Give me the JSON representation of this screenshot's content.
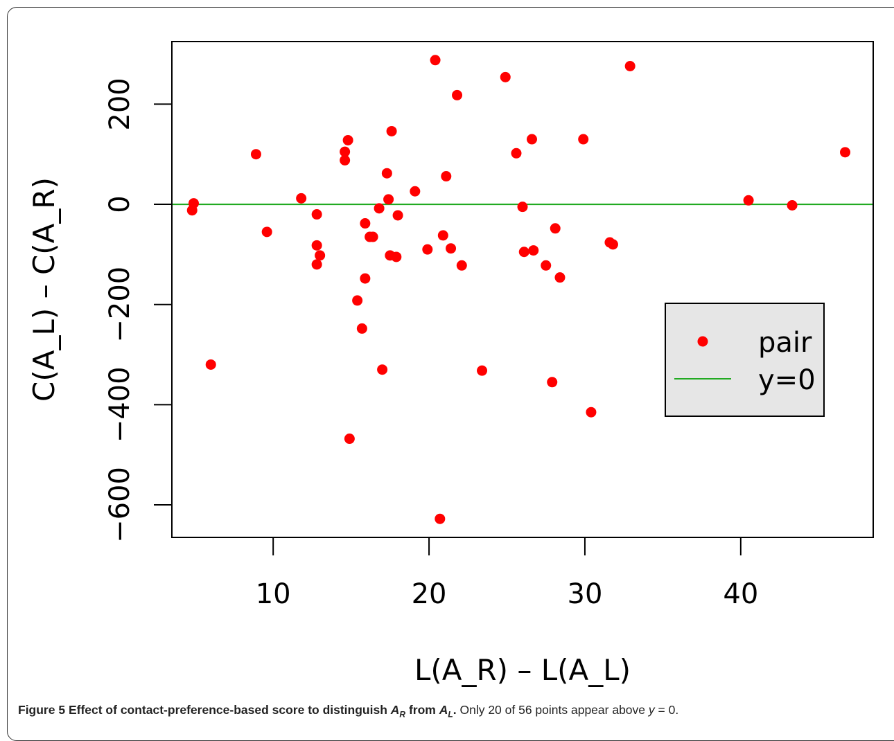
{
  "caption": {
    "label": "Figure 5",
    "title_prefix": "Effect of contact-preference-based score to distinguish",
    "a_r": "A",
    "a_r_sub": "R",
    "from_word": "from",
    "a_l": "A",
    "a_l_sub": "L",
    "title_end": ".",
    "body_text": "Only 20 of 56 points appear above",
    "y_var": "y",
    "body_end": "= 0."
  },
  "chart_data": {
    "type": "scatter",
    "xlabel": "L(A_R) – L(A_L)",
    "ylabel": "C(A_L) – C(A_R)",
    "xlim": [
      3.5,
      48.5
    ],
    "ylim": [
      -665,
      325
    ],
    "xticks": [
      10,
      20,
      30,
      40
    ],
    "yticks": [
      -600,
      -400,
      -200,
      0,
      200
    ],
    "grid": false,
    "legend_position": "right",
    "legend": [
      {
        "label": "pair",
        "kind": "point",
        "color": "#ff0000"
      },
      {
        "label": "y=0",
        "kind": "line",
        "color": "#22aa22"
      }
    ],
    "reference_line": {
      "name": "y=0",
      "y": 0,
      "color": "#22aa22"
    },
    "series": [
      {
        "name": "pair",
        "color": "#ff0000",
        "points": [
          [
            4.8,
            -12
          ],
          [
            4.9,
            2
          ],
          [
            6.0,
            -320
          ],
          [
            8.9,
            100
          ],
          [
            9.6,
            -55
          ],
          [
            11.8,
            12
          ],
          [
            12.8,
            -20
          ],
          [
            12.8,
            -82
          ],
          [
            12.8,
            -120
          ],
          [
            13.0,
            -102
          ],
          [
            14.6,
            105
          ],
          [
            14.6,
            88
          ],
          [
            14.8,
            128
          ],
          [
            14.9,
            -468
          ],
          [
            15.4,
            -192
          ],
          [
            15.7,
            -248
          ],
          [
            15.9,
            -148
          ],
          [
            15.9,
            -38
          ],
          [
            16.2,
            -65
          ],
          [
            16.4,
            -65
          ],
          [
            16.8,
            -8
          ],
          [
            17.0,
            -330
          ],
          [
            17.3,
            62
          ],
          [
            17.4,
            10
          ],
          [
            17.5,
            -102
          ],
          [
            17.6,
            146
          ],
          [
            17.9,
            -105
          ],
          [
            18.0,
            -22
          ],
          [
            19.1,
            26
          ],
          [
            19.9,
            -90
          ],
          [
            20.4,
            288
          ],
          [
            20.7,
            -628
          ],
          [
            20.9,
            -62
          ],
          [
            21.1,
            56
          ],
          [
            21.4,
            -88
          ],
          [
            21.8,
            218
          ],
          [
            22.1,
            -122
          ],
          [
            23.4,
            -332
          ],
          [
            24.9,
            254
          ],
          [
            25.6,
            102
          ],
          [
            26.0,
            -5
          ],
          [
            26.1,
            -95
          ],
          [
            26.6,
            130
          ],
          [
            26.7,
            -92
          ],
          [
            27.5,
            -122
          ],
          [
            27.9,
            -355
          ],
          [
            28.1,
            -48
          ],
          [
            28.4,
            -146
          ],
          [
            29.9,
            130
          ],
          [
            30.4,
            -415
          ],
          [
            31.6,
            -76
          ],
          [
            31.8,
            -80
          ],
          [
            32.9,
            276
          ],
          [
            40.5,
            8
          ],
          [
            43.3,
            -2
          ],
          [
            46.7,
            104
          ]
        ]
      }
    ]
  }
}
